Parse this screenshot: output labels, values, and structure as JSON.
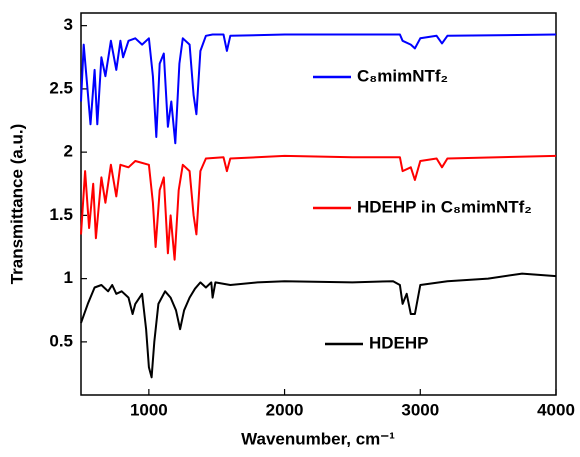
{
  "chart_data": {
    "type": "line",
    "x_label": "Wavenumber, cm⁻¹",
    "y_label": "Transmittance (a.u.)",
    "xlim": [
      500,
      4000
    ],
    "xticks": [
      1000,
      2000,
      3000,
      4000
    ],
    "ylim": [
      0.08,
      3.1
    ],
    "yticks": [
      0.5,
      1.0,
      1.5,
      2.0,
      2.5,
      3.0
    ],
    "series": [
      {
        "name": "C₈mimNTf₂",
        "color": "#0000ff",
        "x": [
          500,
          520,
          570,
          600,
          620,
          650,
          680,
          720,
          760,
          790,
          810,
          850,
          900,
          950,
          1000,
          1030,
          1055,
          1080,
          1110,
          1140,
          1165,
          1195,
          1225,
          1250,
          1300,
          1330,
          1350,
          1380,
          1420,
          1470,
          1550,
          1575,
          1600,
          2000,
          2500,
          2850,
          2870,
          2930,
          2960,
          3000,
          3120,
          3160,
          3200,
          4000
        ],
        "values": [
          2.4,
          2.85,
          2.22,
          2.65,
          2.22,
          2.75,
          2.6,
          2.88,
          2.65,
          2.88,
          2.75,
          2.88,
          2.9,
          2.85,
          2.9,
          2.6,
          2.12,
          2.7,
          2.78,
          2.2,
          2.4,
          2.07,
          2.7,
          2.9,
          2.85,
          2.45,
          2.3,
          2.8,
          2.92,
          2.93,
          2.93,
          2.8,
          2.92,
          2.93,
          2.93,
          2.93,
          2.88,
          2.85,
          2.82,
          2.9,
          2.92,
          2.86,
          2.92,
          2.93
        ]
      },
      {
        "name": "HDEHP in C₈mimNTf₂",
        "color": "#ff0000",
        "x": [
          500,
          530,
          560,
          590,
          610,
          650,
          680,
          720,
          760,
          790,
          850,
          900,
          1000,
          1030,
          1050,
          1080,
          1110,
          1140,
          1160,
          1190,
          1220,
          1250,
          1300,
          1330,
          1350,
          1380,
          1420,
          1550,
          1575,
          1600,
          2000,
          2500,
          2850,
          2870,
          2930,
          2960,
          3000,
          3120,
          3160,
          3200,
          4000
        ],
        "values": [
          1.35,
          1.85,
          1.4,
          1.75,
          1.32,
          1.8,
          1.6,
          1.9,
          1.65,
          1.9,
          1.88,
          1.93,
          1.9,
          1.6,
          1.25,
          1.7,
          1.8,
          1.2,
          1.5,
          1.15,
          1.7,
          1.9,
          1.85,
          1.5,
          1.35,
          1.85,
          1.95,
          1.96,
          1.85,
          1.95,
          1.97,
          1.96,
          1.96,
          1.85,
          1.88,
          1.78,
          1.93,
          1.95,
          1.88,
          1.95,
          1.97
        ]
      },
      {
        "name": "HDEHP",
        "color": "#000000",
        "x": [
          500,
          550,
          600,
          650,
          700,
          730,
          760,
          800,
          850,
          880,
          900,
          950,
          980,
          1000,
          1020,
          1040,
          1070,
          1120,
          1160,
          1200,
          1230,
          1260,
          1300,
          1340,
          1380,
          1420,
          1460,
          1470,
          1490,
          1600,
          1800,
          2000,
          2500,
          2800,
          2850,
          2870,
          2900,
          2930,
          2960,
          3000,
          3200,
          3500,
          3750,
          4000
        ],
        "values": [
          0.65,
          0.8,
          0.93,
          0.95,
          0.9,
          0.95,
          0.88,
          0.9,
          0.85,
          0.72,
          0.8,
          0.88,
          0.6,
          0.3,
          0.22,
          0.5,
          0.8,
          0.9,
          0.85,
          0.75,
          0.6,
          0.75,
          0.85,
          0.92,
          0.97,
          0.93,
          0.97,
          0.85,
          0.97,
          0.95,
          0.97,
          0.98,
          0.97,
          0.98,
          0.95,
          0.8,
          0.88,
          0.72,
          0.72,
          0.95,
          0.98,
          1.0,
          1.04,
          1.02
        ]
      }
    ]
  }
}
